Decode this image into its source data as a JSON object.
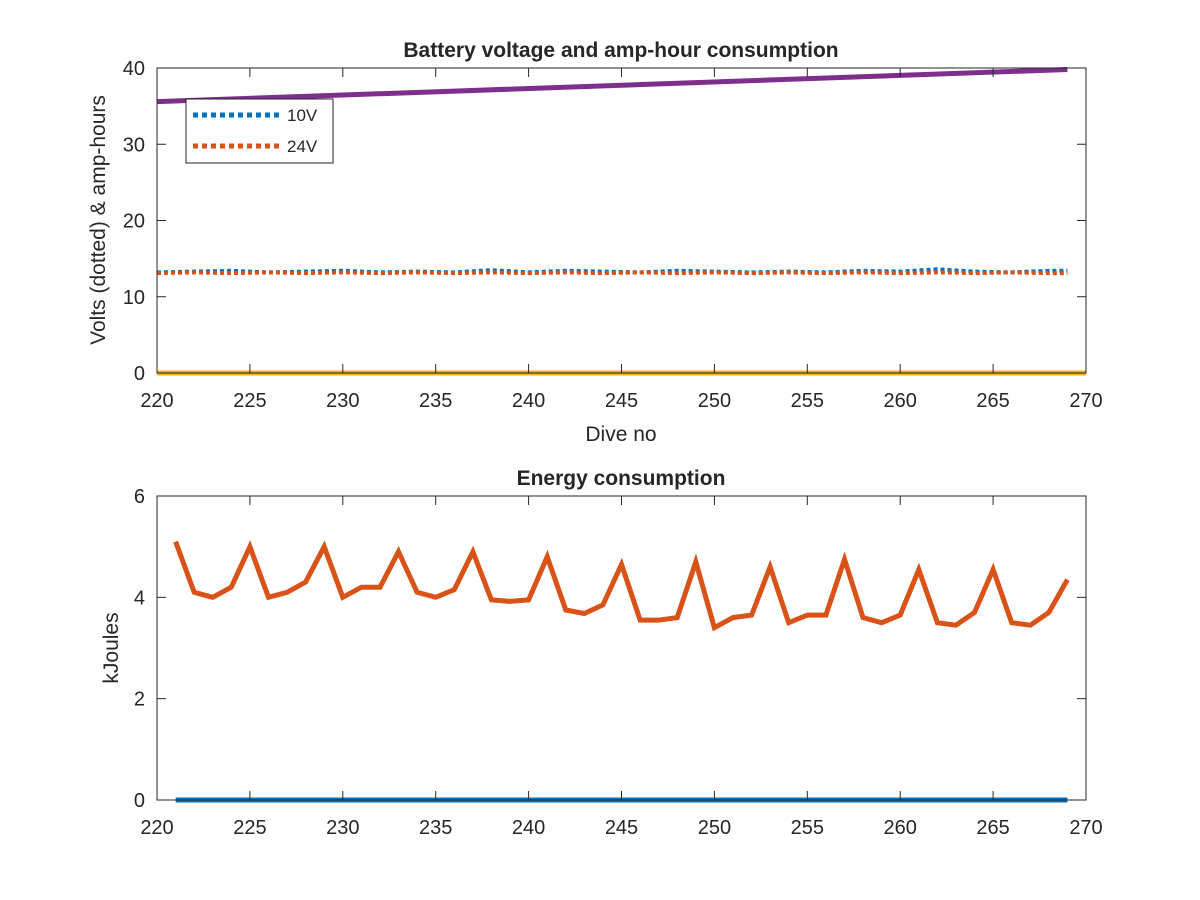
{
  "chart_data": [
    {
      "type": "line",
      "title": "Battery voltage and amp-hour consumption",
      "xlabel": "Dive no",
      "ylabel": "Volts (dotted) & amp-hours",
      "xlim": [
        220,
        270
      ],
      "ylim": [
        0,
        40
      ],
      "xticks": [
        220,
        225,
        230,
        235,
        240,
        245,
        250,
        255,
        260,
        265,
        270
      ],
      "yticks": [
        0,
        10,
        20,
        30,
        40
      ],
      "grid": false,
      "legend": "top-left",
      "series": [
        {
          "name": "10V",
          "style": "dotted",
          "color": "#0072BD",
          "x": [
            220,
            222,
            224,
            226,
            228,
            230,
            232,
            234,
            236,
            238,
            240,
            242,
            244,
            246,
            248,
            250,
            252,
            254,
            256,
            258,
            260,
            262,
            264,
            266,
            268,
            269
          ],
          "y": [
            13.2,
            13.3,
            13.4,
            13.2,
            13.3,
            13.4,
            13.2,
            13.3,
            13.2,
            13.5,
            13.2,
            13.4,
            13.3,
            13.2,
            13.4,
            13.3,
            13.2,
            13.3,
            13.2,
            13.4,
            13.3,
            13.6,
            13.3,
            13.2,
            13.4,
            13.4
          ]
        },
        {
          "name": "24V",
          "style": "dotted",
          "color": "#D95319",
          "x": [
            220,
            222,
            224,
            226,
            228,
            230,
            232,
            234,
            236,
            238,
            240,
            242,
            244,
            246,
            248,
            250,
            252,
            254,
            256,
            258,
            260,
            262,
            264,
            266,
            268,
            269
          ],
          "y": [
            13.1,
            13.2,
            13.1,
            13.2,
            13.1,
            13.2,
            13.1,
            13.2,
            13.1,
            13.2,
            13.1,
            13.2,
            13.1,
            13.2,
            13.1,
            13.2,
            13.1,
            13.2,
            13.1,
            13.2,
            13.1,
            13.2,
            13.1,
            13.2,
            13.1,
            13.1
          ]
        },
        {
          "style": "solid",
          "color": "#EDB120",
          "x": [
            220,
            270
          ],
          "y": [
            0,
            0
          ]
        },
        {
          "style": "solid",
          "color": "#7E2F8E",
          "x": [
            220,
            269
          ],
          "y": [
            35.6,
            39.8
          ]
        }
      ]
    },
    {
      "type": "line",
      "title": "Energy consumption",
      "xlabel": "",
      "ylabel": "kJoules",
      "xlim": [
        220,
        270
      ],
      "ylim": [
        0,
        6
      ],
      "xticks": [
        220,
        225,
        230,
        235,
        240,
        245,
        250,
        255,
        260,
        265,
        270
      ],
      "yticks": [
        0,
        2,
        4,
        6
      ],
      "grid": false,
      "series": [
        {
          "style": "solid",
          "color": "#D95319",
          "x": [
            221,
            222,
            223,
            224,
            225,
            226,
            227,
            228,
            229,
            230,
            231,
            232,
            233,
            234,
            235,
            236,
            237,
            238,
            239,
            240,
            241,
            242,
            243,
            244,
            245,
            246,
            247,
            248,
            249,
            250,
            251,
            252,
            253,
            254,
            255,
            256,
            257,
            258,
            259,
            260,
            261,
            262,
            263,
            264,
            265,
            266,
            267,
            268,
            269
          ],
          "y": [
            5.1,
            4.1,
            4.0,
            4.2,
            5.0,
            4.0,
            4.1,
            4.3,
            5.0,
            4.0,
            4.2,
            4.2,
            4.9,
            4.1,
            4.0,
            4.15,
            4.9,
            3.95,
            3.92,
            3.95,
            4.8,
            3.75,
            3.68,
            3.85,
            4.65,
            3.55,
            3.55,
            3.6,
            4.7,
            3.4,
            3.6,
            3.65,
            4.6,
            3.5,
            3.65,
            3.65,
            4.75,
            3.6,
            3.5,
            3.65,
            4.55,
            3.5,
            3.45,
            3.7,
            4.55,
            3.5,
            3.45,
            3.7,
            4.35
          ]
        },
        {
          "style": "solid",
          "color": "#0072BD",
          "x": [
            221,
            269
          ],
          "y": [
            0,
            0
          ]
        }
      ]
    }
  ]
}
